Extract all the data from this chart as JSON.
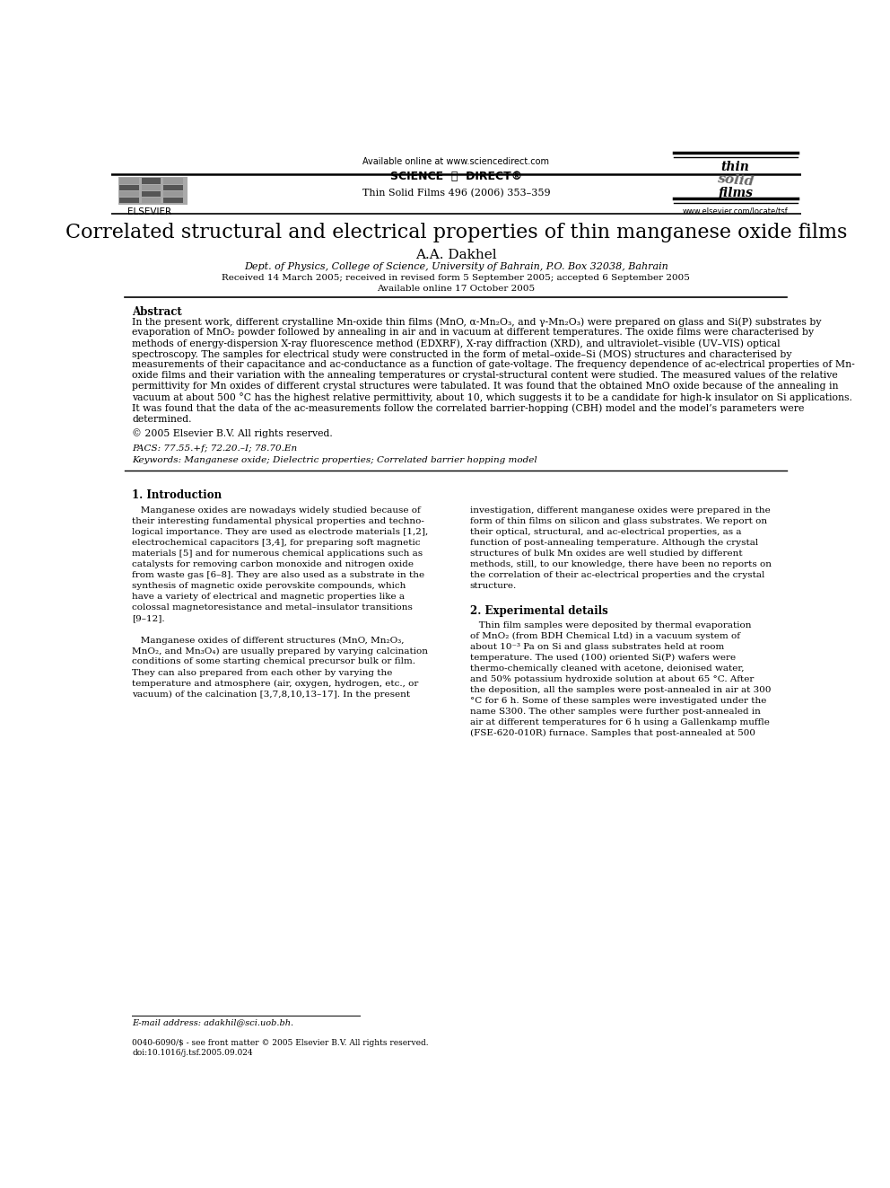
{
  "title": "Correlated structural and electrical properties of thin manganese oxide films",
  "author": "A.A. Dakhel",
  "affiliation": "Dept. of Physics, College of Science, University of Bahrain, P.O. Box 32038, Bahrain",
  "received": "Received 14 March 2005; received in revised form 5 September 2005; accepted 6 September 2005",
  "available": "Available online 17 October 2005",
  "journal_header": "Thin Solid Films 496 (2006) 353–359",
  "available_online": "Available online at www.sciencedirect.com",
  "sciencedirect_logo": "SCIENCE  ⓐ  DIRECT®",
  "elsevier_url": "www.elsevier.com/locate/tsf",
  "abstract_title": "Abstract",
  "copyright": "© 2005 Elsevier B.V. All rights reserved.",
  "pacs": "PACS: 77.55.+f; 72.20.–I; 78.70.En",
  "keywords": "Keywords: Manganese oxide; Dielectric properties; Correlated barrier hopping model",
  "section1_title": "1. Introduction",
  "section2_title": "2. Experimental details",
  "footer_email": "E-mail address: adakhil@sci.uob.bh.",
  "footer_issn": "0040-6090/$ - see front matter © 2005 Elsevier B.V. All rights reserved.",
  "footer_doi": "doi:10.1016/j.tsf.2005.09.024",
  "bg_color": "#ffffff",
  "text_color": "#000000",
  "abstract_lines": [
    "In the present work, different crystalline Mn-oxide thin films (MnO, α-Mn₂O₃, and γ-Mn₂O₃) were prepared on glass and Si(P) substrates by",
    "evaporation of MnO₂ powder followed by annealing in air and in vacuum at different temperatures. The oxide films were characterised by",
    "methods of energy-dispersion X-ray fluorescence method (EDXRF), X-ray diffraction (XRD), and ultraviolet–visible (UV–VIS) optical",
    "spectroscopy. The samples for electrical study were constructed in the form of metal–oxide–Si (MOS) structures and characterised by",
    "measurements of their capacitance and ac-conductance as a function of gate-voltage. The frequency dependence of ac-electrical properties of Mn-",
    "oxide films and their variation with the annealing temperatures or crystal-structural content were studied. The measured values of the relative",
    "permittivity for Mn oxides of different crystal structures were tabulated. It was found that the obtained MnO oxide because of the annealing in",
    "vacuum at about 500 °C has the highest relative permittivity, about 10, which suggests it to be a candidate for high-k insulator on Si applications.",
    "It was found that the data of the ac-measurements follow the correlated barrier-hopping (CBH) model and the model’s parameters were",
    "determined."
  ],
  "col1_lines": [
    "   Manganese oxides are nowadays widely studied because of",
    "their interesting fundamental physical properties and techno-",
    "logical importance. They are used as electrode materials [1,2],",
    "electrochemical capacitors [3,4], for preparing soft magnetic",
    "materials [5] and for numerous chemical applications such as",
    "catalysts for removing carbon monoxide and nitrogen oxide",
    "from waste gas [6–8]. They are also used as a substrate in the",
    "synthesis of magnetic oxide perovskite compounds, which",
    "have a variety of electrical and magnetic properties like a",
    "colossal magnetoresistance and metal–insulator transitions",
    "[9–12].",
    "",
    "   Manganese oxides of different structures (MnO, Mn₂O₃,",
    "MnO₂, and Mn₃O₄) are usually prepared by varying calcination",
    "conditions of some starting chemical precursor bulk or film.",
    "They can also prepared from each other by varying the",
    "temperature and atmosphere (air, oxygen, hydrogen, etc., or",
    "vacuum) of the calcination [3,7,8,10,13–17]. In the present"
  ],
  "col2_intro_lines": [
    "investigation, different manganese oxides were prepared in the",
    "form of thin films on silicon and glass substrates. We report on",
    "their optical, structural, and ac-electrical properties, as a",
    "function of post-annealing temperature. Although the crystal",
    "structures of bulk Mn oxides are well studied by different",
    "methods, still, to our knowledge, there have been no reports on",
    "the correlation of their ac-electrical properties and the crystal",
    "structure."
  ],
  "col2_sec2_lines": [
    "   Thin film samples were deposited by thermal evaporation",
    "of MnO₂ (from BDH Chemical Ltd) in a vacuum system of",
    "about 10⁻³ Pa on Si and glass substrates held at room",
    "temperature. The used (100) oriented Si(P) wafers were",
    "thermo-chemically cleaned with acetone, deionised water,",
    "and 50% potassium hydroxide solution at about 65 °C. After",
    "the deposition, all the samples were post-annealed in air at 300",
    "°C for 6 h. Some of these samples were investigated under the",
    "name S300. The other samples were further post-annealed in",
    "air at different temperatures for 6 h using a Gallenkamp muffle",
    "(FSE-620-010R) furnace. Samples that post-annealed at 500"
  ]
}
